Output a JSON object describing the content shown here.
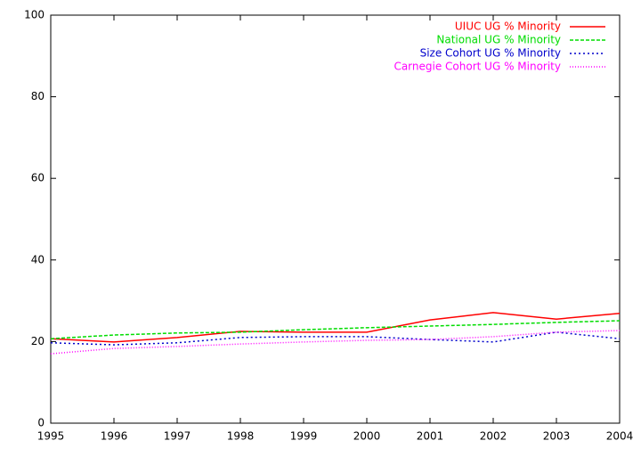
{
  "chart_data": {
    "type": "line",
    "x": [
      1995,
      1996,
      1997,
      1998,
      1999,
      2000,
      2001,
      2002,
      2003,
      2004
    ],
    "series": [
      {
        "name": "UIUC UG % Minority",
        "color": "#ff0000",
        "values": [
          20.7,
          19.9,
          21.0,
          22.5,
          22.3,
          22.3,
          25.3,
          27.1,
          25.5,
          26.9
        ]
      },
      {
        "name": "National UG % Minority",
        "color": "#00dd00",
        "values": [
          20.7,
          21.6,
          22.1,
          22.3,
          22.9,
          23.4,
          23.8,
          24.2,
          24.7,
          25.1
        ]
      },
      {
        "name": "Size Cohort UG % Minority",
        "color": "#0000cc",
        "values": [
          19.7,
          19.2,
          19.7,
          21.0,
          21.2,
          21.2,
          20.5,
          19.9,
          22.3,
          20.7
        ]
      },
      {
        "name": "Carnegie Cohort UG % Minority",
        "color": "#ff00ff",
        "values": [
          17.0,
          18.3,
          18.8,
          19.4,
          19.9,
          20.3,
          20.5,
          21.2,
          22.3,
          22.7
        ]
      }
    ],
    "xlim": [
      1995,
      2004
    ],
    "xticks": [
      1995,
      1996,
      1997,
      1998,
      1999,
      2000,
      2001,
      2002,
      2003,
      2004
    ],
    "ylim": [
      0,
      100
    ],
    "yticks": [
      0,
      20,
      40,
      60,
      80,
      100
    ],
    "grid": false,
    "legend": "top-right"
  }
}
